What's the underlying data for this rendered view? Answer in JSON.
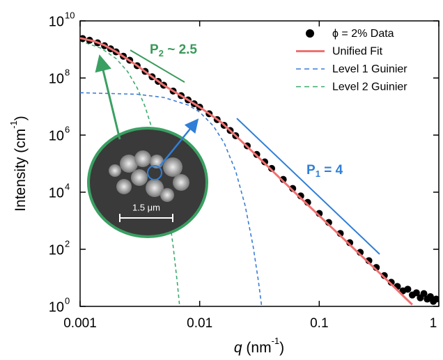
{
  "chart_data": {
    "type": "scatter",
    "log_x": true,
    "log_y": true,
    "xlim": [
      0.001,
      1
    ],
    "ylim": [
      1,
      10000000000
    ],
    "xticks": [
      0.001,
      0.01,
      0.1,
      1
    ],
    "yticks": [
      {
        "value": 1,
        "label": "10",
        "exponent": "0"
      },
      {
        "value": 100,
        "label": "10",
        "exponent": "2"
      },
      {
        "value": 10000,
        "label": "10",
        "exponent": "4"
      },
      {
        "value": 1000000,
        "label": "10",
        "exponent": "6"
      },
      {
        "value": 100000000,
        "label": "10",
        "exponent": "8"
      },
      {
        "value": 10000000000,
        "label": "10",
        "exponent": "10"
      }
    ],
    "x_label": {
      "italic": "q",
      "text": " (nm",
      "sup": "-1",
      "end": ")"
    },
    "y_label": {
      "text": "Intensity (cm",
      "sup": "-1",
      "end": ")"
    },
    "legend": "upper right",
    "series": [
      {
        "name": "ϕ = 2% Data",
        "style": "markers",
        "color": "#000000",
        "x": [
          0.00105,
          0.0012,
          0.0014,
          0.0016,
          0.0018,
          0.002,
          0.0023,
          0.0026,
          0.003,
          0.0035,
          0.004,
          0.0045,
          0.005,
          0.006,
          0.007,
          0.008,
          0.009,
          0.01,
          0.012,
          0.014,
          0.016,
          0.018,
          0.02,
          0.025,
          0.03,
          0.035,
          0.04,
          0.05,
          0.06,
          0.07,
          0.08,
          0.1,
          0.12,
          0.15,
          0.18,
          0.22,
          0.26,
          0.3,
          0.35,
          0.4,
          0.45,
          0.5,
          0.55,
          0.6,
          0.65,
          0.7,
          0.75,
          0.8,
          0.85,
          0.9,
          0.95
        ],
        "values": [
          2400000000,
          2100000000,
          1700000000,
          1350000000,
          1050000000,
          820000000,
          580000000,
          420000000,
          270000000,
          170000000,
          110000000,
          76000000,
          56000000,
          35000000,
          24000000,
          17000000,
          12500000,
          9500000,
          5600000,
          3500000,
          2200000,
          1450000,
          950000,
          420000,
          210000,
          115000,
          68000,
          28000,
          13500,
          7400,
          4400,
          1800,
          870,
          360,
          170,
          78,
          40,
          23,
          12,
          7,
          5,
          3.5,
          4,
          2.5,
          3,
          2,
          2.8,
          1.8,
          2.2,
          1.5,
          1.8
        ]
      },
      {
        "name": "Unified Fit",
        "style": "line",
        "color": "#f07070",
        "x": [
          0.001,
          0.0013,
          0.0016,
          0.002,
          0.0025,
          0.003,
          0.004,
          0.005,
          0.006,
          0.007,
          0.008,
          0.01,
          0.012,
          0.015,
          0.02,
          0.03,
          0.05,
          0.07,
          0.1,
          0.15,
          0.2,
          0.3,
          0.4,
          0.5,
          0.6
        ],
        "values": [
          2500000000,
          1950000000,
          1400000000,
          830000000,
          450000000,
          270000000,
          110000000,
          56000000,
          35000000,
          24000000,
          17000000,
          9500000,
          5600000,
          2900000,
          950000,
          190000,
          24000,
          6200,
          1500,
          300,
          95,
          19,
          6,
          2.4,
          1.15
        ]
      },
      {
        "name": "Level 1 Guinier",
        "style": "dashed",
        "color": "#3a7bd5",
        "x": [
          0.001,
          0.003,
          0.005,
          0.008,
          0.01,
          0.013,
          0.016,
          0.02,
          0.024,
          0.028,
          0.031,
          0.033
        ],
        "values": [
          30500000,
          26900000,
          20900000,
          11300000,
          6400000,
          2100000,
          540000,
          55000,
          3400,
          126,
          7.6,
          1.0
        ]
      },
      {
        "name": "Level 2 Guinier",
        "style": "dashed",
        "color": "#3aaa6a",
        "x": [
          0.001,
          0.0015,
          0.002,
          0.0025,
          0.003,
          0.0035,
          0.004,
          0.0045,
          0.005,
          0.0055,
          0.006,
          0.0065,
          0.0068
        ],
        "values": [
          2000000000,
          1100000000,
          480000000,
          166000000,
          45000000,
          9800000,
          1650000,
          220000,
          23000,
          1960,
          128,
          6.7,
          1.0
        ]
      }
    ],
    "annotations": [
      {
        "base": "P",
        "sub": "2",
        "text": " ~ 2.5",
        "color": "#3a9a5a"
      },
      {
        "base": "P",
        "sub": "1",
        "text": " =  4",
        "color": "#2f7fd8"
      }
    ],
    "inset_scale": "1.5 μm"
  }
}
